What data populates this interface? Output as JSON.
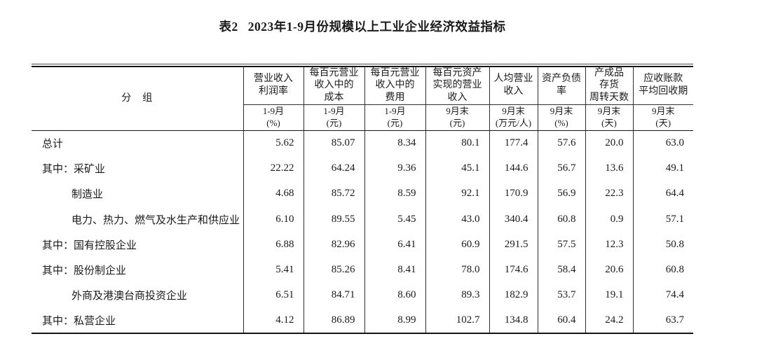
{
  "title": {
    "prefix": "表2",
    "text": "2023年1-9月份规模以上工业企业经济效益指标"
  },
  "colors": {
    "text": "#1a1a1a",
    "rule_thick": "#141414",
    "rule_thin": "#2e2e2e",
    "background": "#ffffff"
  },
  "table": {
    "group_header": "分　组",
    "columns": [
      {
        "title_lines": [
          "营业收入",
          "利润率"
        ],
        "period": "1-9月",
        "unit": "(%)"
      },
      {
        "title_lines": [
          "每百元营业",
          "收入中的",
          "成本"
        ],
        "period": "1-9月",
        "unit": "(元)"
      },
      {
        "title_lines": [
          "每百元营业",
          "收入中的",
          "费用"
        ],
        "period": "1-9月",
        "unit": "(元)"
      },
      {
        "title_lines": [
          "每百元资产",
          "实现的营业",
          "收入"
        ],
        "period": "9月末",
        "unit": "(元)"
      },
      {
        "title_lines": [
          "人均营业",
          "收入"
        ],
        "period": "9月末",
        "unit": "(万元/人)"
      },
      {
        "title_lines": [
          "资产负债",
          "率"
        ],
        "period": "9月末",
        "unit": "(%)"
      },
      {
        "title_lines": [
          "产成品",
          "存货",
          "周转天数"
        ],
        "period": "9月末",
        "unit": "(天)"
      },
      {
        "title_lines": [
          "应收账款",
          "平均回收期"
        ],
        "period": "9月末",
        "unit": "(天)"
      }
    ],
    "rows": [
      {
        "prefix": "",
        "label": "总计",
        "indent": false,
        "values": [
          "5.62",
          "85.07",
          "8.34",
          "80.1",
          "177.4",
          "57.6",
          "20.0",
          "63.0"
        ]
      },
      {
        "prefix": "其中：",
        "label": "采矿业",
        "indent": false,
        "values": [
          "22.22",
          "64.24",
          "9.36",
          "45.1",
          "144.6",
          "56.7",
          "13.6",
          "49.1"
        ]
      },
      {
        "prefix": "",
        "label": "制造业",
        "indent": true,
        "values": [
          "4.68",
          "85.72",
          "8.59",
          "92.1",
          "170.9",
          "56.9",
          "22.3",
          "64.4"
        ]
      },
      {
        "prefix": "",
        "label": "电力、热力、燃气及水生产和供应业",
        "indent": true,
        "values": [
          "6.10",
          "89.55",
          "5.45",
          "43.0",
          "340.4",
          "60.8",
          "0.9",
          "57.1"
        ]
      },
      {
        "prefix": "其中：",
        "label": "国有控股企业",
        "indent": false,
        "values": [
          "6.88",
          "82.96",
          "6.41",
          "60.9",
          "291.5",
          "57.5",
          "12.3",
          "50.8"
        ]
      },
      {
        "prefix": "其中：",
        "label": "股份制企业",
        "indent": false,
        "values": [
          "5.41",
          "85.26",
          "8.41",
          "78.0",
          "174.6",
          "58.4",
          "20.6",
          "60.8"
        ]
      },
      {
        "prefix": "",
        "label": "外商及港澳台商投资企业",
        "indent": true,
        "values": [
          "6.51",
          "84.71",
          "8.60",
          "89.3",
          "182.9",
          "53.7",
          "19.1",
          "74.4"
        ]
      },
      {
        "prefix": "其中：",
        "label": "私营企业",
        "indent": false,
        "values": [
          "4.12",
          "86.89",
          "8.99",
          "102.7",
          "134.8",
          "60.4",
          "24.2",
          "63.7"
        ]
      }
    ]
  }
}
